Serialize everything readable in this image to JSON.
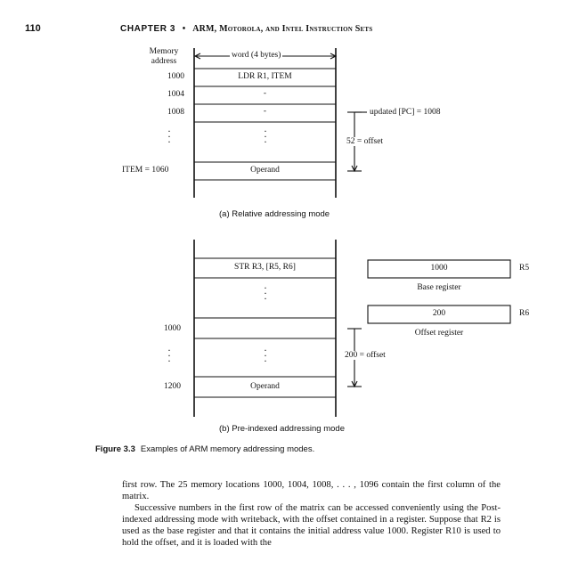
{
  "header": {
    "page_number": "110",
    "chapter_label": "CHAPTER 3",
    "separator": "•",
    "chapter_title": "ARM, Motorola, and Intel Instruction Sets"
  },
  "figure_a": {
    "memory_address_label_line1": "Memory",
    "memory_address_label_line2": "address",
    "word_label": "word (4 bytes)",
    "addresses": [
      "1000",
      "1004",
      "1008",
      "ITEM = 1060"
    ],
    "cells": [
      "LDR   R1, ITEM",
      "-",
      "-",
      "Operand"
    ],
    "updated_pc": "updated [PC] = 1008",
    "offset": "52 = offset",
    "caption": "(a) Relative addressing mode"
  },
  "figure_b": {
    "instruction": "STR   R3, [R5, R6]",
    "addresses": [
      "1000",
      "1200"
    ],
    "operand": "Operand",
    "r5_value": "1000",
    "r5_name": "R5",
    "r5_caption": "Base register",
    "r6_value": "200",
    "r6_name": "R6",
    "r6_caption": "Offset register",
    "offset": "200 = offset",
    "caption": "(b) Pre-indexed addressing mode"
  },
  "figure_caption": {
    "label": "Figure 3.3",
    "text": "Examples of ARM memory addressing modes."
  },
  "body_text": {
    "paragraph1": "first row. The 25 memory locations 1000, 1004, 1008, . . . , 1096 contain the first column of the matrix.",
    "paragraph2": "Successive numbers in the first row of the matrix can be accessed conveniently using the Post-indexed addressing mode with writeback, with the offset contained in a register. Suppose that R2 is used as the base register and that it contains the initial address value 1000. Register R10 is used to hold the offset, and it is loaded with the"
  }
}
